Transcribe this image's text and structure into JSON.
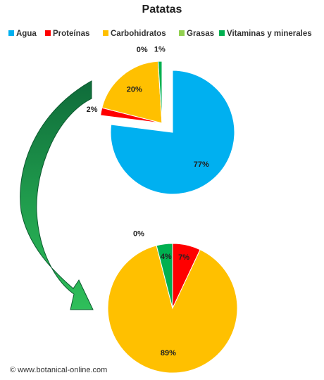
{
  "chart_data": [
    {
      "type": "pie",
      "title": "Patatas",
      "categories": [
        "Agua",
        "Proteínas",
        "Carbohidratos",
        "Grasas",
        "Vitaminas y minerales"
      ],
      "values": [
        77,
        2,
        20,
        0,
        1
      ],
      "value_labels": [
        "77%",
        "2%",
        "20%",
        "0%",
        "1%"
      ],
      "colors": [
        "#00b0f0",
        "#ff0000",
        "#ffc000",
        "#92d050",
        "#00b050"
      ]
    },
    {
      "type": "pie",
      "values": [
        7,
        89,
        0,
        4
      ],
      "value_labels": [
        "7%",
        "89%",
        "0%",
        "4%"
      ],
      "colors": [
        "#ff0000",
        "#ffc000",
        "#92d050",
        "#00b050"
      ]
    }
  ],
  "source": "© www.botanical-online.com"
}
